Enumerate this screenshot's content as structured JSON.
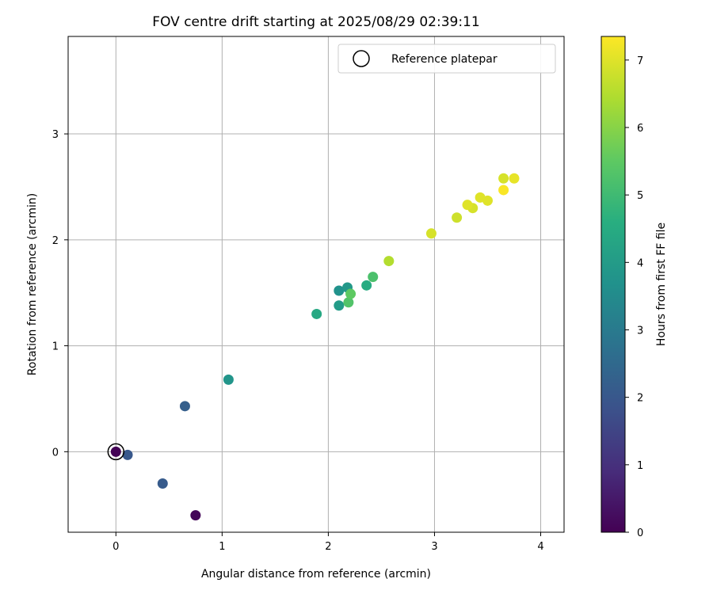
{
  "chart_data": {
    "type": "scatter",
    "title": "FOV centre drift starting at 2025/08/29 02:39:11",
    "xlabel": "Angular distance from reference (arcmin)",
    "ylabel": "Rotation from reference (arcmin)",
    "xlim": [
      -0.45,
      4.22
    ],
    "ylim": [
      -0.76,
      3.92
    ],
    "xticks": [
      0,
      1,
      2,
      3,
      4
    ],
    "yticks": [
      0,
      1,
      2,
      3
    ],
    "grid": true,
    "legend": {
      "placement": "top-right",
      "entries": [
        "Reference platepar"
      ]
    },
    "reference_point": {
      "x": 0,
      "y": 0
    },
    "colorbar": {
      "label": "Hours from first FF file",
      "range": [
        0,
        7.35
      ],
      "ticks": [
        0,
        1,
        2,
        3,
        4,
        5,
        6,
        7
      ],
      "colormap": "viridis"
    },
    "points": [
      {
        "x": 0.0,
        "y": 0.0,
        "hours": 0.05
      },
      {
        "x": 0.75,
        "y": -0.6,
        "hours": 0.1
      },
      {
        "x": 0.11,
        "y": -0.03,
        "hours": 2.0
      },
      {
        "x": 0.44,
        "y": -0.3,
        "hours": 2.1
      },
      {
        "x": 0.65,
        "y": 0.43,
        "hours": 2.2
      },
      {
        "x": 1.06,
        "y": 0.68,
        "hours": 3.8
      },
      {
        "x": 1.89,
        "y": 1.3,
        "hours": 4.4
      },
      {
        "x": 2.1,
        "y": 1.38,
        "hours": 4.0
      },
      {
        "x": 2.1,
        "y": 1.52,
        "hours": 3.7
      },
      {
        "x": 2.18,
        "y": 1.55,
        "hours": 3.9
      },
      {
        "x": 2.19,
        "y": 1.41,
        "hours": 5.3
      },
      {
        "x": 2.21,
        "y": 1.49,
        "hours": 5.5
      },
      {
        "x": 2.36,
        "y": 1.57,
        "hours": 4.5
      },
      {
        "x": 2.42,
        "y": 1.65,
        "hours": 5.2
      },
      {
        "x": 2.57,
        "y": 1.8,
        "hours": 6.5
      },
      {
        "x": 2.97,
        "y": 2.06,
        "hours": 6.9
      },
      {
        "x": 3.21,
        "y": 2.21,
        "hours": 6.8
      },
      {
        "x": 3.31,
        "y": 2.33,
        "hours": 7.0
      },
      {
        "x": 3.36,
        "y": 2.3,
        "hours": 6.9
      },
      {
        "x": 3.43,
        "y": 2.4,
        "hours": 7.0
      },
      {
        "x": 3.5,
        "y": 2.37,
        "hours": 7.0
      },
      {
        "x": 3.65,
        "y": 2.58,
        "hours": 6.9
      },
      {
        "x": 3.65,
        "y": 2.47,
        "hours": 7.3
      },
      {
        "x": 3.75,
        "y": 2.58,
        "hours": 7.1
      }
    ]
  }
}
